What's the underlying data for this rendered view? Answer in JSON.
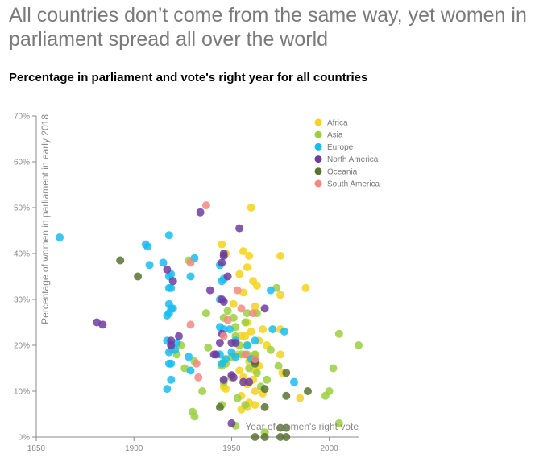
{
  "page": {
    "title": "All countries don’t come from the same way, yet women in parliament spread all over the world"
  },
  "chart_data": {
    "type": "scatter",
    "title": "Percentage in parliament and vote's right year for all countries",
    "xlabel": "Year of women's right vote",
    "ylabel": "Percentage of women in parliament in early 2018",
    "xlim": [
      1850,
      2015
    ],
    "ylim": [
      0,
      70
    ],
    "x_ticks": [
      "1850",
      "1900",
      "1950",
      "2000"
    ],
    "y_ticks": [
      "0%",
      "10%",
      "20%",
      "30%",
      "40%",
      "50%",
      "60%",
      "70%"
    ],
    "grid": false,
    "legend_position": "top-right",
    "series": [
      {
        "name": "Africa",
        "color": "#f5d21c",
        "points": [
          [
            1945,
            42
          ],
          [
            1947,
            40
          ],
          [
            1956,
            40.5
          ],
          [
            1959,
            39.5
          ],
          [
            1975,
            39.5
          ],
          [
            1958,
            37
          ],
          [
            1954,
            35.5
          ],
          [
            1961,
            34
          ],
          [
            1963,
            33
          ],
          [
            1956,
            31.5
          ],
          [
            1975,
            31
          ],
          [
            1988,
            32.5
          ],
          [
            1951,
            29
          ],
          [
            1962,
            28.5
          ],
          [
            1958,
            25
          ],
          [
            1960,
            23
          ],
          [
            1966,
            23.5
          ],
          [
            1975,
            23.5
          ],
          [
            1955,
            22
          ],
          [
            1957,
            22
          ],
          [
            1964,
            21
          ],
          [
            1958,
            20
          ],
          [
            1968,
            20
          ],
          [
            1953,
            18
          ],
          [
            1962,
            18
          ],
          [
            1975,
            18
          ],
          [
            1946,
            16.5
          ],
          [
            1959,
            16.5
          ],
          [
            1964,
            15.5
          ],
          [
            1954,
            14.5
          ],
          [
            1962,
            14.5
          ],
          [
            1976,
            14
          ],
          [
            1956,
            13
          ],
          [
            1961,
            12.5
          ],
          [
            1958,
            11.5
          ],
          [
            1946,
            11
          ],
          [
            1947,
            10.5
          ],
          [
            1962,
            10
          ],
          [
            1966,
            9.5
          ],
          [
            1955,
            9
          ],
          [
            1959,
            7.5
          ],
          [
            1985,
            8.5
          ],
          [
            1955,
            6
          ],
          [
            1958,
            6.5
          ],
          [
            1962,
            7
          ],
          [
            1960,
            50
          ]
        ]
      },
      {
        "name": "Asia",
        "color": "#9bcf3f",
        "points": [
          [
            1928,
            38.5
          ],
          [
            1948,
            27.5
          ],
          [
            1937,
            27
          ],
          [
            1946,
            26
          ],
          [
            1951,
            26
          ],
          [
            1957,
            25
          ],
          [
            1958,
            27
          ],
          [
            1963,
            27
          ],
          [
            1952,
            24
          ],
          [
            1970,
            19
          ],
          [
            1938,
            19.5
          ],
          [
            1931,
            16.5
          ],
          [
            1950,
            17.5
          ],
          [
            1955,
            18
          ],
          [
            1958,
            18
          ],
          [
            1962,
            18
          ],
          [
            1919,
            19
          ],
          [
            1922,
            18
          ],
          [
            1924,
            20
          ],
          [
            1947,
            16
          ],
          [
            1973,
            32.5
          ],
          [
            1945,
            15.5
          ],
          [
            1963,
            14
          ],
          [
            1974,
            15.5
          ],
          [
            1950,
            13
          ],
          [
            1946,
            12
          ],
          [
            1968,
            12.5
          ],
          [
            1935,
            10
          ],
          [
            1945,
            7
          ],
          [
            1953,
            8.5
          ],
          [
            1965,
            11
          ],
          [
            2000,
            10
          ],
          [
            1998,
            9
          ],
          [
            2002,
            15
          ],
          [
            2005,
            22.5
          ],
          [
            2015,
            20
          ],
          [
            1930,
            5.5
          ],
          [
            1931,
            4.5
          ],
          [
            1952,
            2.5
          ],
          [
            1957,
            7
          ],
          [
            1967,
            1
          ],
          [
            2005,
            3
          ],
          [
            1952,
            22
          ],
          [
            1954,
            20
          ],
          [
            1959,
            15
          ],
          [
            1926,
            15
          ]
        ]
      },
      {
        "name": "Europe",
        "color": "#1abcf0",
        "points": [
          [
            1862,
            43.5
          ],
          [
            1918,
            44
          ],
          [
            1906,
            42
          ],
          [
            1907,
            41.5
          ],
          [
            1908,
            37.5
          ],
          [
            1915,
            38
          ],
          [
            1919,
            35.5
          ],
          [
            1918,
            35
          ],
          [
            1918,
            32.5
          ],
          [
            1919,
            32.5
          ],
          [
            1929,
            35
          ],
          [
            1931,
            39
          ],
          [
            1944,
            37.5
          ],
          [
            1945,
            34
          ],
          [
            1946,
            34.5
          ],
          [
            1944,
            30
          ],
          [
            1918,
            29
          ],
          [
            1919,
            28
          ],
          [
            1920,
            28
          ],
          [
            1918,
            27
          ],
          [
            1917,
            26.5
          ],
          [
            1944,
            24
          ],
          [
            1946,
            23.5
          ],
          [
            1949,
            23.5
          ],
          [
            1952,
            21
          ],
          [
            1970,
            32
          ],
          [
            1971,
            23.5
          ],
          [
            1977,
            23
          ],
          [
            1962,
            21
          ],
          [
            1917,
            21
          ],
          [
            1919,
            20
          ],
          [
            1922,
            20.5
          ],
          [
            1921,
            19
          ],
          [
            1918,
            18.5
          ],
          [
            1928,
            17.5
          ],
          [
            1919,
            16
          ],
          [
            1918,
            16
          ],
          [
            1950,
            18.5
          ],
          [
            1952,
            17.5
          ],
          [
            1945,
            16
          ],
          [
            1944,
            18
          ],
          [
            1929,
            14.5
          ],
          [
            1919,
            12.5
          ],
          [
            1917,
            10.5
          ],
          [
            1982,
            12
          ],
          [
            1958,
            20
          ],
          [
            1960,
            17
          ],
          [
            1962,
            16.5
          ],
          [
            1947,
            17
          ]
        ]
      },
      {
        "name": "North America",
        "color": "#6e3ca0",
        "points": [
          [
            1934,
            49
          ],
          [
            1954,
            45.5
          ],
          [
            1946,
            39.5
          ],
          [
            1945,
            38
          ],
          [
            1946,
            40
          ],
          [
            1917,
            36.5
          ],
          [
            1920,
            34
          ],
          [
            1948,
            35
          ],
          [
            1945,
            30
          ],
          [
            1946,
            29.5
          ],
          [
            1939,
            32
          ],
          [
            1967,
            28
          ],
          [
            1881,
            25
          ],
          [
            1884,
            24.5
          ],
          [
            1923,
            22
          ],
          [
            1919,
            21
          ],
          [
            1919,
            20
          ],
          [
            1941,
            18
          ],
          [
            1942,
            18
          ],
          [
            1950,
            20.5
          ],
          [
            1952,
            20.5
          ],
          [
            1944,
            20.5
          ],
          [
            1946,
            12.5
          ],
          [
            1950,
            13.5
          ],
          [
            1951,
            13
          ],
          [
            1959,
            12
          ],
          [
            1956,
            12
          ],
          [
            1962,
            16.5
          ],
          [
            1945,
            22.5
          ],
          [
            1950,
            3
          ]
        ]
      },
      {
        "name": "Oceania",
        "color": "#5a7232",
        "points": [
          [
            1893,
            38.5
          ],
          [
            1902,
            35
          ],
          [
            1962,
            16
          ],
          [
            1978,
            14
          ],
          [
            1967,
            10.5
          ],
          [
            1978,
            9
          ],
          [
            1989,
            10
          ],
          [
            1944,
            6.5
          ],
          [
            1967,
            6.5
          ],
          [
            1975,
            2
          ],
          [
            1978,
            2
          ],
          [
            1962,
            0
          ],
          [
            1967,
            0
          ],
          [
            1975,
            0
          ],
          [
            1978,
            0
          ]
        ]
      },
      {
        "name": "South America",
        "color": "#f28a80",
        "points": [
          [
            1937,
            50.5
          ],
          [
            1929,
            38
          ],
          [
            1955,
            28
          ],
          [
            1948,
            25.5
          ],
          [
            1953,
            32
          ],
          [
            1961,
            27
          ],
          [
            1929,
            24.5
          ],
          [
            1946,
            22
          ],
          [
            1932,
            16
          ],
          [
            1933,
            13
          ],
          [
            1957,
            18
          ],
          [
            1962,
            17
          ]
        ]
      }
    ]
  }
}
